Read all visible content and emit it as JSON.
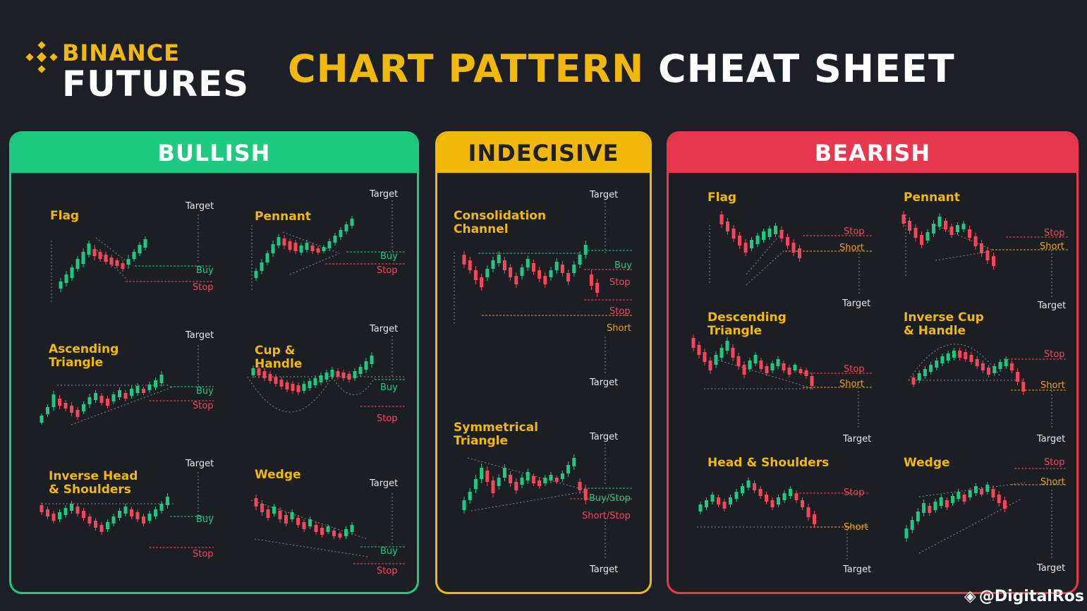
{
  "brand": {
    "line1": "BINANCE",
    "line2": "FUTURES"
  },
  "title": {
    "part1": "CHART PATTERN",
    "part2": "CHEAT SHEET"
  },
  "sections": {
    "bullish": "BULLISH",
    "indecisive": "INDECISIVE",
    "bearish": "BEARISH"
  },
  "labels": {
    "target": "Target",
    "buy": "Buy",
    "stop": "Stop",
    "short": "Short",
    "buy_stop": "Buy/Stop",
    "short_stop": "Short/Stop"
  },
  "patterns": {
    "bull_flag": "Flag",
    "bull_pennant": "Pennant",
    "bull_asc_l1": "Ascending",
    "bull_asc_l2": "Triangle",
    "bull_cup_l1": "Cup &",
    "bull_cup_l2": "Handle",
    "bull_ihs_l1": "Inverse Head",
    "bull_ihs_l2": "& Shoulders",
    "bull_wedge": "Wedge",
    "ind_cons_l1": "Consolidation",
    "ind_cons_l2": "Channel",
    "ind_sym_l1": "Symmetrical",
    "ind_sym_l2": "Triangle",
    "bear_flag": "Flag",
    "bear_pennant": "Pennant",
    "bear_desc_l1": "Descending",
    "bear_desc_l2": "Triangle",
    "bear_icup_l1": "Inverse Cup",
    "bear_icup_l2": "& Handle",
    "bear_hs": "Head & Shoulders",
    "bear_wedge": "Wedge"
  },
  "watermark": "@DigitalRos",
  "colors": {
    "brand_yellow": "#f0b90b",
    "bull_green": "#1ec981",
    "bear_red": "#e8384f",
    "candle_up": "#1ec981",
    "candle_down": "#f6465d",
    "orange": "#f0a020"
  }
}
